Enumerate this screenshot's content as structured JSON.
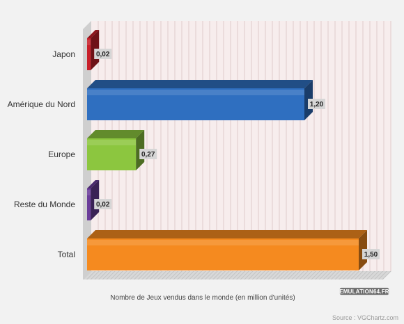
{
  "chart_data": {
    "type": "bar",
    "orientation": "horizontal",
    "categories": [
      "Japon",
      "Amérique du Nord",
      "Europe",
      "Reste du Monde",
      "Total"
    ],
    "values": [
      0.02,
      1.2,
      0.27,
      0.02,
      1.5
    ],
    "value_labels": [
      "0,02",
      "1,20",
      "0,27",
      "0,02",
      "1,50"
    ],
    "colors": [
      "#c8202a",
      "#2f6fc0",
      "#8cc63f",
      "#6a3d9a",
      "#f58a1f"
    ],
    "xlabel": "Nombre de Jeux vendus dans le monde (en million d'unités)",
    "xlim": [
      0,
      1.5
    ],
    "grid": true
  },
  "footer": {
    "source": "Source : VGChartz.com",
    "logo": "EMULATION64.FR"
  }
}
